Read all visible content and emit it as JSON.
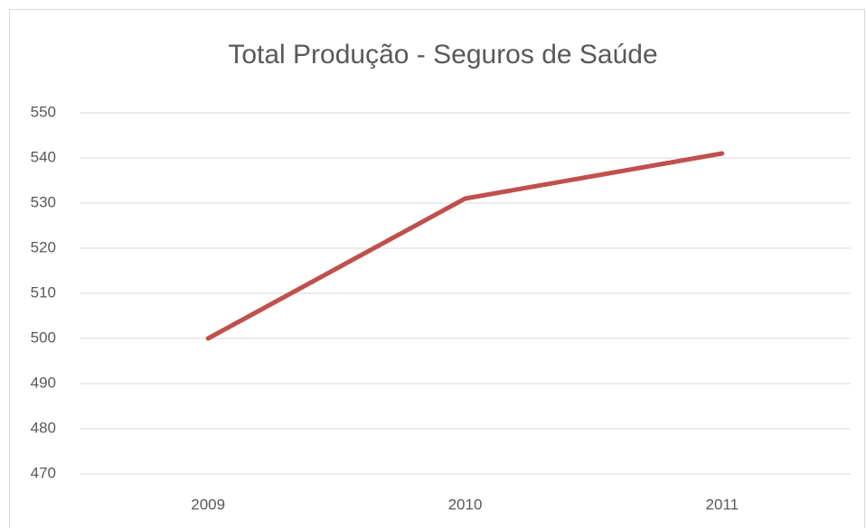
{
  "chart_data": {
    "type": "line",
    "title": "Total Produção - Seguros de Saúde",
    "categories": [
      "2009",
      "2010",
      "2011"
    ],
    "series": [
      {
        "name": "Total Produção",
        "color": "#c0504d",
        "values": [
          500,
          531,
          541
        ]
      }
    ],
    "ylim": [
      470,
      550
    ],
    "yticks": [
      470,
      480,
      490,
      500,
      510,
      520,
      530,
      540,
      550
    ],
    "grid": true
  }
}
